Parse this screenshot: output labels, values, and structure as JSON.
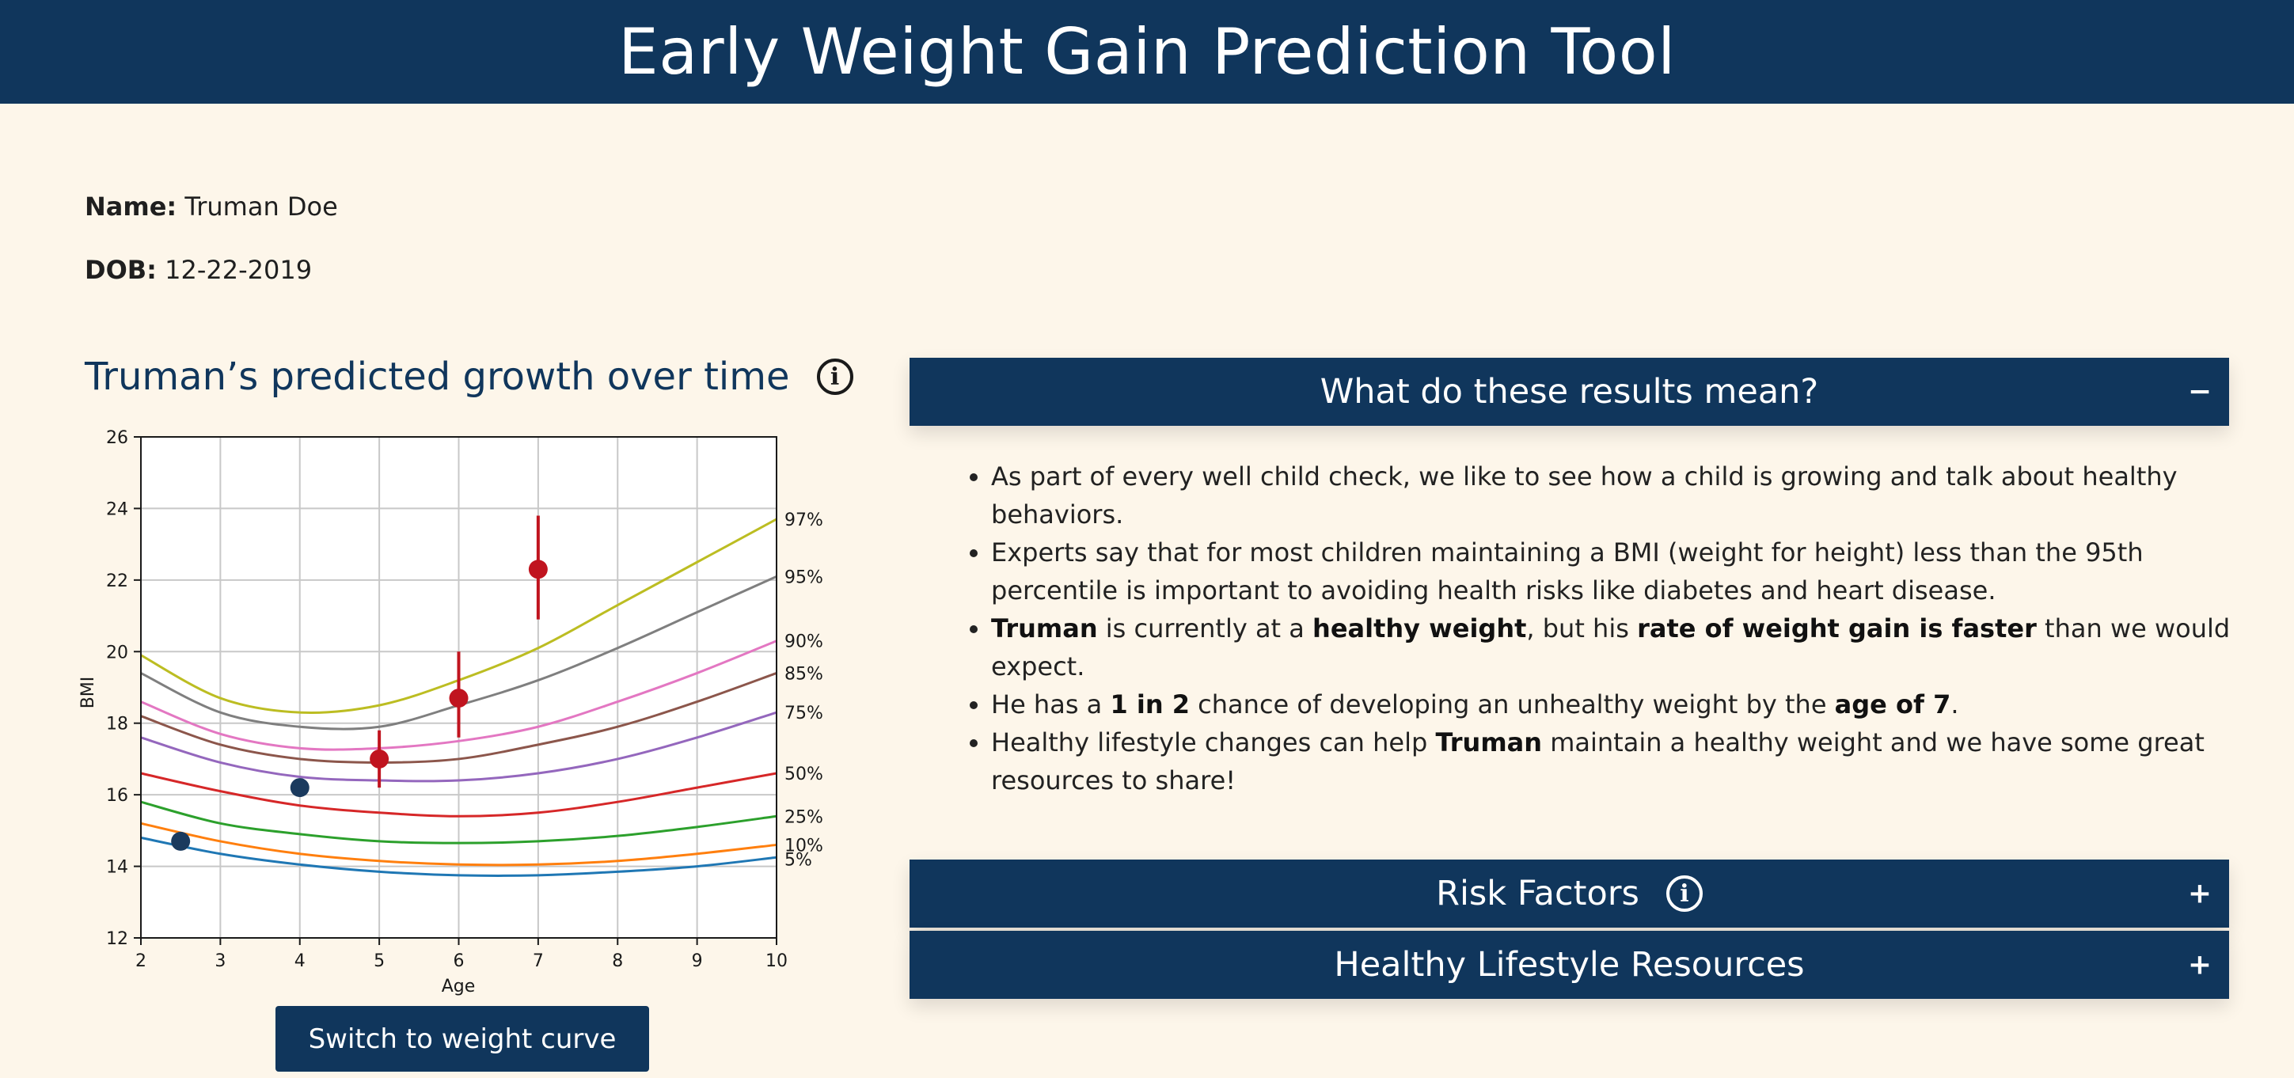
{
  "header": {
    "title": "Early Weight Gain Prediction Tool"
  },
  "patient": {
    "name_label": "Name:",
    "name_value": "Truman Doe",
    "dob_label": "DOB:",
    "dob_value": "12-22-2019"
  },
  "chart_section": {
    "title": "Truman’s predicted growth over time",
    "info_icon": "info-icon",
    "switch_button": "Switch to weight curve"
  },
  "chart_data": {
    "type": "line",
    "xlabel": "Age",
    "ylabel": "BMI",
    "xlim": [
      2,
      10
    ],
    "ylim": [
      12,
      26
    ],
    "xticks": [
      2,
      3,
      4,
      5,
      6,
      7,
      8,
      9,
      10
    ],
    "yticks": [
      12,
      14,
      16,
      18,
      20,
      22,
      24,
      26
    ],
    "grid": true,
    "x": [
      2,
      3,
      4,
      5,
      6,
      7,
      8,
      9,
      10
    ],
    "series": [
      {
        "name": "97%",
        "color": "#bcbd22",
        "values": [
          19.9,
          18.7,
          18.3,
          18.5,
          19.2,
          20.1,
          21.3,
          22.5,
          23.7
        ]
      },
      {
        "name": "95%",
        "color": "#7f7f7f",
        "values": [
          19.4,
          18.3,
          17.9,
          17.9,
          18.5,
          19.2,
          20.1,
          21.1,
          22.1
        ]
      },
      {
        "name": "90%",
        "color": "#e377c2",
        "values": [
          18.6,
          17.7,
          17.3,
          17.3,
          17.5,
          17.9,
          18.6,
          19.4,
          20.3
        ]
      },
      {
        "name": "85%",
        "color": "#8c564b",
        "values": [
          18.2,
          17.4,
          17.0,
          16.9,
          17.0,
          17.4,
          17.9,
          18.6,
          19.4
        ]
      },
      {
        "name": "75%",
        "color": "#9467bd",
        "values": [
          17.6,
          16.9,
          16.5,
          16.4,
          16.4,
          16.6,
          17.0,
          17.6,
          18.3
        ]
      },
      {
        "name": "50%",
        "color": "#d62728",
        "values": [
          16.6,
          16.1,
          15.7,
          15.5,
          15.4,
          15.5,
          15.8,
          16.2,
          16.6
        ]
      },
      {
        "name": "25%",
        "color": "#2ca02c",
        "values": [
          15.8,
          15.2,
          14.9,
          14.7,
          14.65,
          14.7,
          14.85,
          15.1,
          15.4
        ]
      },
      {
        "name": "10%",
        "color": "#ff7f0e",
        "values": [
          15.2,
          14.7,
          14.35,
          14.15,
          14.05,
          14.05,
          14.15,
          14.35,
          14.6
        ]
      },
      {
        "name": "5%",
        "color": "#1f77b4",
        "values": [
          14.8,
          14.35,
          14.05,
          13.85,
          13.75,
          13.75,
          13.85,
          14.0,
          14.25
        ]
      }
    ],
    "measured_points": {
      "color": "#1a3a5e",
      "points": [
        {
          "x": 2.5,
          "y": 14.7
        },
        {
          "x": 4,
          "y": 16.2
        }
      ]
    },
    "predicted_points": {
      "color": "#c0141f",
      "points": [
        {
          "x": 5,
          "y": 17.0,
          "low": 16.2,
          "high": 17.8
        },
        {
          "x": 6,
          "y": 18.7,
          "low": 17.6,
          "high": 20.0
        },
        {
          "x": 7,
          "y": 22.3,
          "low": 20.9,
          "high": 23.8
        }
      ]
    }
  },
  "results_panel": {
    "title": "What do these results mean?",
    "toggle": "−",
    "bullets": [
      [
        {
          "t": "As part of every well child check, we like to see how a child is growing and talk about healthy behaviors.",
          "b": false
        }
      ],
      [
        {
          "t": "Experts say that for most children maintaining a BMI (weight for height) less than the 95th percentile is important to avoiding health risks like diabetes and heart disease.",
          "b": false
        }
      ],
      [
        {
          "t": "Truman",
          "b": true
        },
        {
          "t": " is currently at a ",
          "b": false
        },
        {
          "t": "healthy weight",
          "b": true
        },
        {
          "t": ", but his ",
          "b": false
        },
        {
          "t": "rate of weight gain is faster",
          "b": true
        },
        {
          "t": " than we would expect.",
          "b": false
        }
      ],
      [
        {
          "t": "He has a ",
          "b": false
        },
        {
          "t": "1 in 2",
          "b": true
        },
        {
          "t": " chance of developing an unhealthy weight by the ",
          "b": false
        },
        {
          "t": "age of 7",
          "b": true
        },
        {
          "t": ".",
          "b": false
        }
      ],
      [
        {
          "t": "Healthy lifestyle changes can help ",
          "b": false
        },
        {
          "t": "Truman",
          "b": true
        },
        {
          "t": " maintain a healthy weight and we have some great resources to share!",
          "b": false
        }
      ]
    ]
  },
  "risk_factors": {
    "title": "Risk Factors",
    "toggle": "+",
    "info_icon": "info-icon"
  },
  "resources": {
    "title": "Healthy Lifestyle Resources",
    "toggle": "+"
  }
}
